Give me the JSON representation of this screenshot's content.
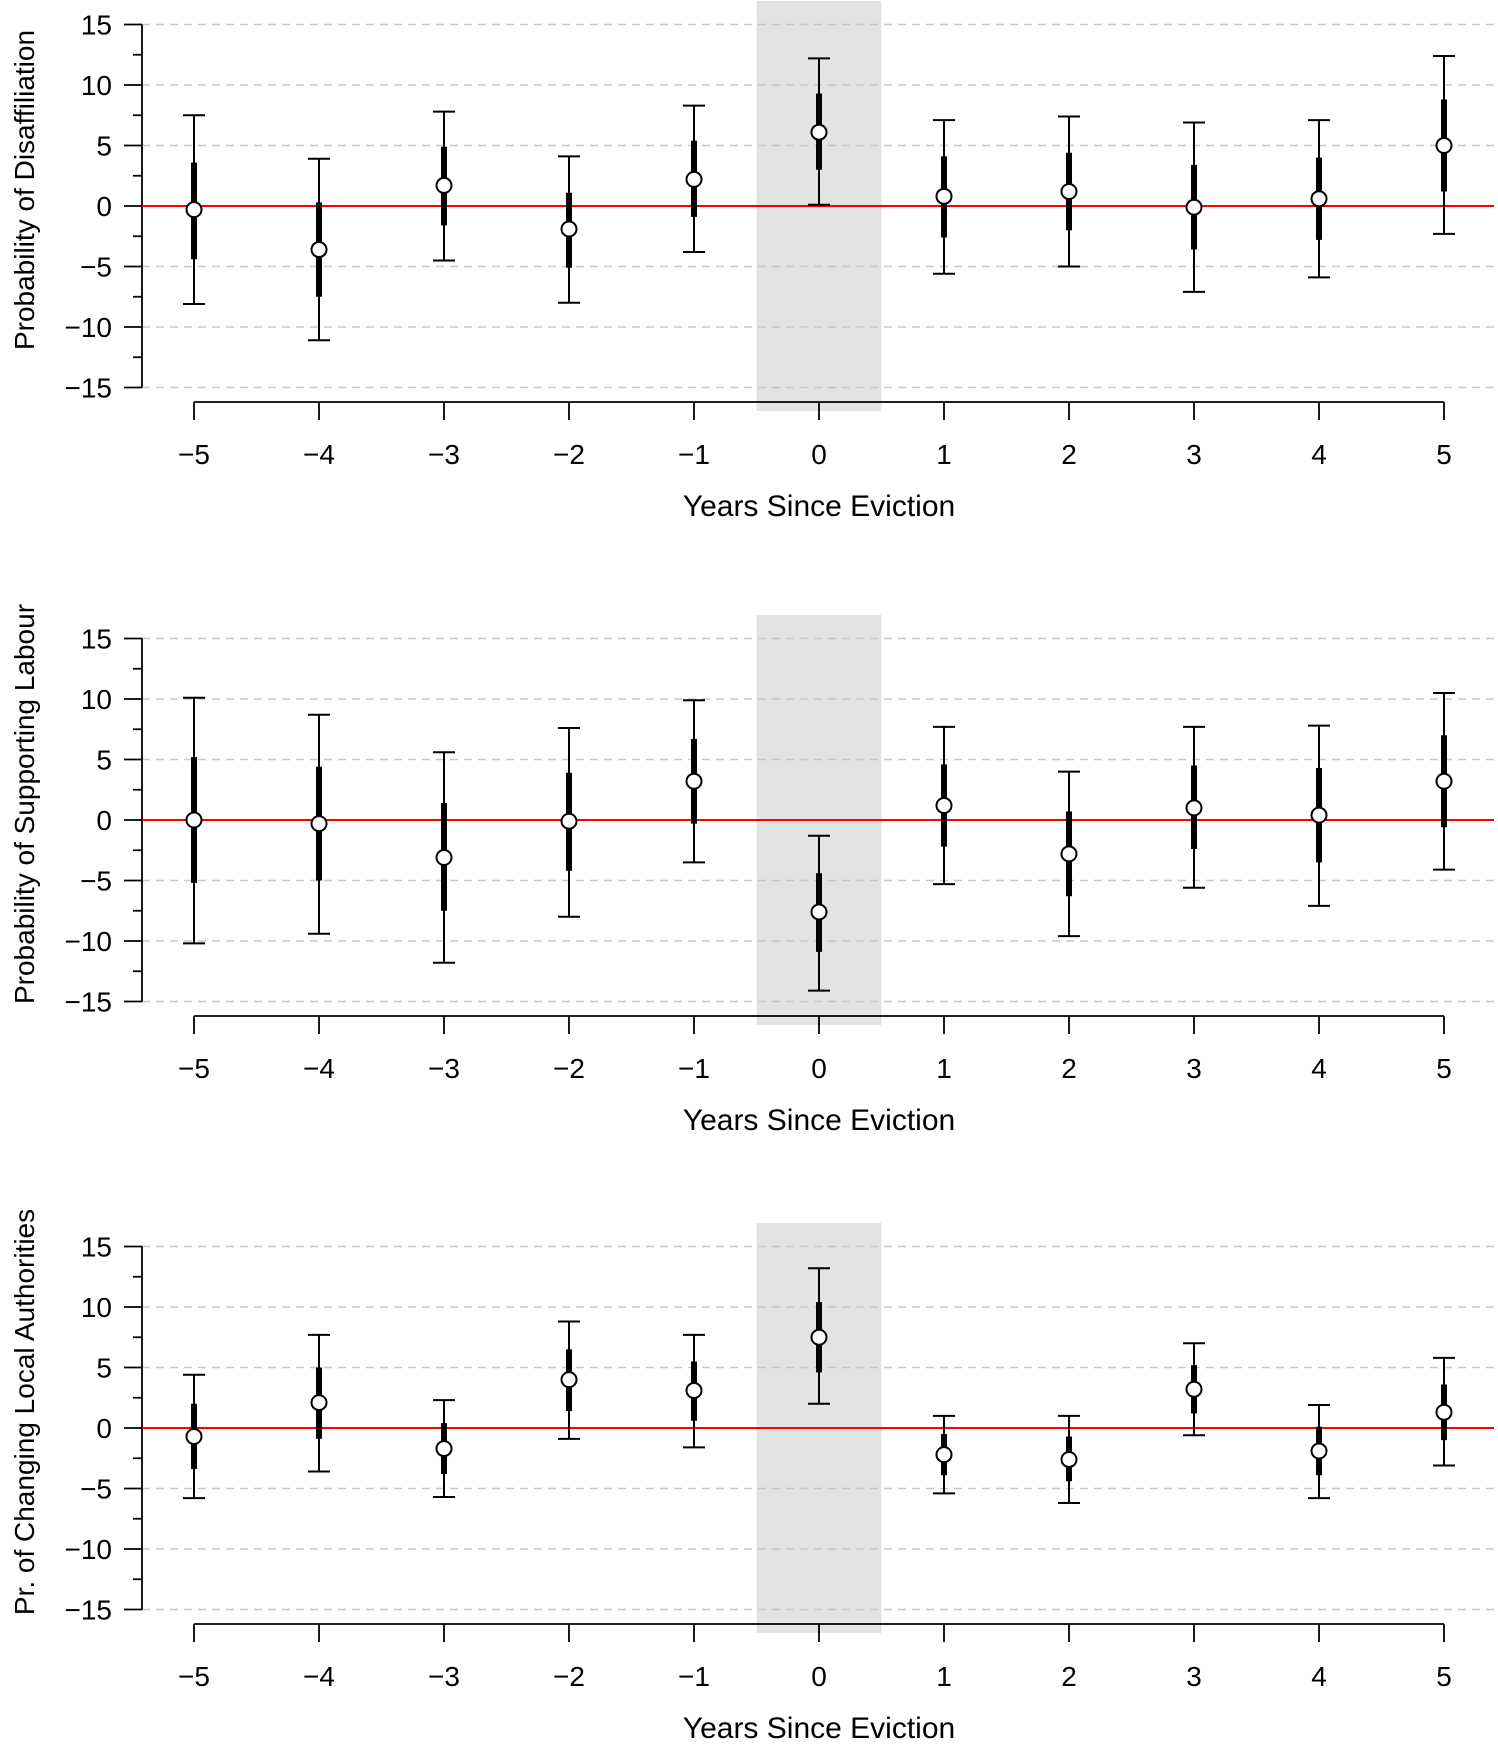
{
  "colors": {
    "reference_line": "#ff0000",
    "shade": "#e3e3e3",
    "grid": "#c8c8c8",
    "marker_fill": "#ffffff",
    "ink": "#000000"
  },
  "chart_data": [
    {
      "type": "scatter",
      "title": "",
      "xlabel": "Years Since Eviction",
      "ylabel": "Probability of Disaffiliation",
      "x": [
        -5,
        -4,
        -3,
        -2,
        -1,
        0,
        1,
        2,
        3,
        4,
        5
      ],
      "x_tick_labels": [
        "−5",
        "−4",
        "−3",
        "−2",
        "−1",
        "0",
        "1",
        "2",
        "3",
        "4",
        "5"
      ],
      "y_ticks": [
        15,
        10,
        5,
        0,
        -5,
        -10,
        -15
      ],
      "y_tick_labels": [
        "15",
        "10",
        "5",
        "0",
        "−5",
        "−10",
        "−15"
      ],
      "ylim": [
        -15,
        15
      ],
      "grid": true,
      "reference_y": 0,
      "shaded_x_range": [
        -0.5,
        0.5
      ],
      "series": [
        {
          "name": "Probability of Disaffiliation",
          "values": [
            -0.3,
            -3.6,
            1.7,
            -1.9,
            2.2,
            6.1,
            0.8,
            1.2,
            -0.1,
            0.6,
            5.0
          ],
          "ci95_low": [
            -8.1,
            -11.1,
            -4.5,
            -8.0,
            -3.8,
            0.1,
            -5.6,
            -5.0,
            -7.1,
            -5.9,
            -2.3
          ],
          "ci95_high": [
            7.5,
            3.9,
            7.8,
            4.1,
            8.3,
            12.2,
            7.1,
            7.4,
            6.9,
            7.1,
            12.4
          ],
          "ci90_low": [
            -4.4,
            -7.5,
            -1.6,
            -5.1,
            -0.9,
            3.0,
            -2.6,
            -2.0,
            -3.6,
            -2.8,
            1.2
          ],
          "ci90_high": [
            3.6,
            0.3,
            4.9,
            1.1,
            5.4,
            9.3,
            4.1,
            4.4,
            3.4,
            4.0,
            8.8
          ]
        }
      ]
    },
    {
      "type": "scatter",
      "title": "",
      "xlabel": "Years Since Eviction",
      "ylabel": "Probability of Supporting Labour",
      "x": [
        -5,
        -4,
        -3,
        -2,
        -1,
        0,
        1,
        2,
        3,
        4,
        5
      ],
      "x_tick_labels": [
        "−5",
        "−4",
        "−3",
        "−2",
        "−1",
        "0",
        "1",
        "2",
        "3",
        "4",
        "5"
      ],
      "y_ticks": [
        15,
        10,
        5,
        0,
        -5,
        -10,
        -15
      ],
      "y_tick_labels": [
        "15",
        "10",
        "5",
        "0",
        "−5",
        "−10",
        "−15"
      ],
      "ylim": [
        -15,
        15
      ],
      "grid": true,
      "reference_y": 0,
      "shaded_x_range": [
        -0.5,
        0.5
      ],
      "series": [
        {
          "name": "Probability of Supporting Labour",
          "values": [
            0.0,
            -0.3,
            -3.1,
            -0.1,
            3.2,
            -7.6,
            1.2,
            -2.8,
            1.0,
            0.4,
            3.2
          ],
          "ci95_low": [
            -10.2,
            -9.4,
            -11.8,
            -8.0,
            -3.5,
            -14.1,
            -5.3,
            -9.6,
            -5.6,
            -7.1,
            -4.1
          ],
          "ci95_high": [
            10.1,
            8.7,
            5.6,
            7.6,
            9.9,
            -1.3,
            7.7,
            4.0,
            7.7,
            7.8,
            10.5
          ],
          "ci90_low": [
            -5.2,
            -5.0,
            -7.5,
            -4.2,
            -0.3,
            -10.9,
            -2.2,
            -6.3,
            -2.4,
            -3.5,
            -0.6
          ],
          "ci90_high": [
            5.2,
            4.4,
            1.4,
            3.9,
            6.7,
            -4.4,
            4.6,
            0.7,
            4.5,
            4.3,
            7.0
          ]
        }
      ]
    },
    {
      "type": "scatter",
      "title": "",
      "xlabel": "Years Since Eviction",
      "ylabel": "Pr. of Changing Local Authorities",
      "x": [
        -5,
        -4,
        -3,
        -2,
        -1,
        0,
        1,
        2,
        3,
        4,
        5
      ],
      "x_tick_labels": [
        "−5",
        "−4",
        "−3",
        "−2",
        "−1",
        "0",
        "1",
        "2",
        "3",
        "4",
        "5"
      ],
      "y_ticks": [
        15,
        10,
        5,
        0,
        -5,
        -10,
        -15
      ],
      "y_tick_labels": [
        "15",
        "10",
        "5",
        "0",
        "−5",
        "−10",
        "−15"
      ],
      "ylim": [
        -15,
        15
      ],
      "grid": true,
      "reference_y": 0,
      "shaded_x_range": [
        -0.5,
        0.5
      ],
      "series": [
        {
          "name": "Pr. of Changing Local Authorities",
          "values": [
            -0.7,
            2.1,
            -1.7,
            4.0,
            3.1,
            7.5,
            -2.2,
            -2.6,
            3.2,
            -1.9,
            1.3
          ],
          "ci95_low": [
            -5.8,
            -3.6,
            -5.7,
            -0.9,
            -1.6,
            2.0,
            -5.4,
            -6.2,
            -0.6,
            -5.8,
            -3.1
          ],
          "ci95_high": [
            4.4,
            7.7,
            2.3,
            8.8,
            7.7,
            13.2,
            1.0,
            1.0,
            7.0,
            1.9,
            5.8
          ],
          "ci90_low": [
            -3.4,
            -0.9,
            -3.8,
            1.4,
            0.6,
            4.6,
            -3.9,
            -4.4,
            1.2,
            -3.9,
            -1.0
          ],
          "ci90_high": [
            2.0,
            5.0,
            0.4,
            6.5,
            5.5,
            10.4,
            -0.5,
            -0.7,
            5.2,
            0.1,
            3.6
          ]
        }
      ]
    }
  ]
}
